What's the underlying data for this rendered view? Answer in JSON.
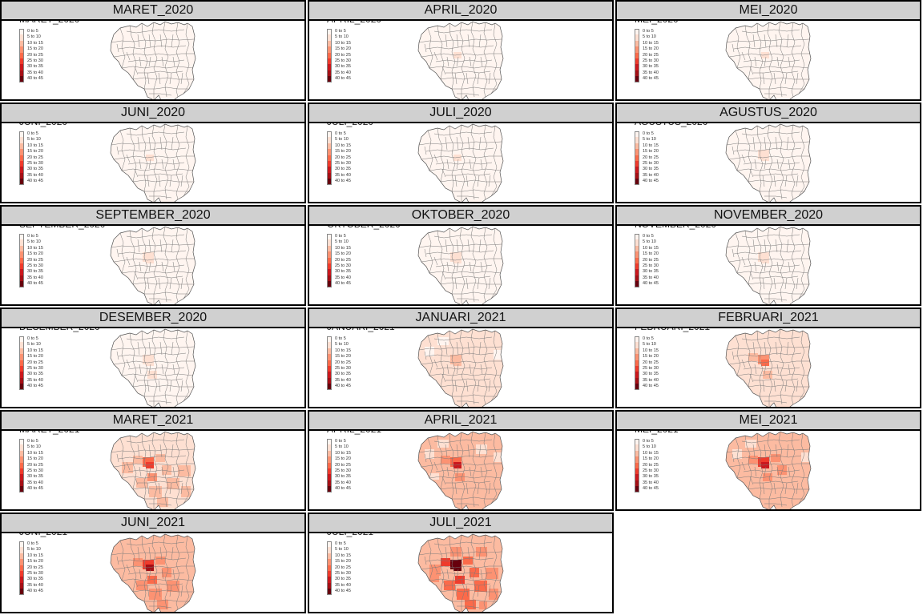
{
  "legend": {
    "labels": [
      "0 to 5",
      "5 to 10",
      "10 to 15",
      "15 to 20",
      "20 to 25",
      "25 to 30",
      "30 to 35",
      "35 to 40",
      "40 to 45"
    ],
    "colors": [
      "#fff5f0",
      "#fee0d2",
      "#fcbba1",
      "#fc9272",
      "#fb6a4a",
      "#ef3b2c",
      "#cb181d",
      "#a50f15",
      "#67000d"
    ]
  },
  "panels": [
    {
      "title": "MARET_2020",
      "level": 0.02
    },
    {
      "title": "APRIL_2020",
      "level": 0.03
    },
    {
      "title": "MEI_2020",
      "level": 0.03
    },
    {
      "title": "JUNI_2020",
      "level": 0.03
    },
    {
      "title": "JULI_2020",
      "level": 0.03
    },
    {
      "title": "AGUSTUS_2020",
      "level": 0.04
    },
    {
      "title": "SEPTEMBER_2020",
      "level": 0.04
    },
    {
      "title": "OKTOBER_2020",
      "level": 0.04
    },
    {
      "title": "NOVEMBER_2020",
      "level": 0.05
    },
    {
      "title": "DESEMBER_2020",
      "level": 0.06
    },
    {
      "title": "JANUARI_2021",
      "level": 0.12
    },
    {
      "title": "FEBRUARI_2021",
      "level": 0.2
    },
    {
      "title": "MARET_2021",
      "level": 0.3
    },
    {
      "title": "APRIL_2021",
      "level": 0.34
    },
    {
      "title": "MEI_2021",
      "level": 0.36
    },
    {
      "title": "JUNI_2021",
      "level": 0.42
    },
    {
      "title": "JULI_2021",
      "level": 0.62
    }
  ]
}
